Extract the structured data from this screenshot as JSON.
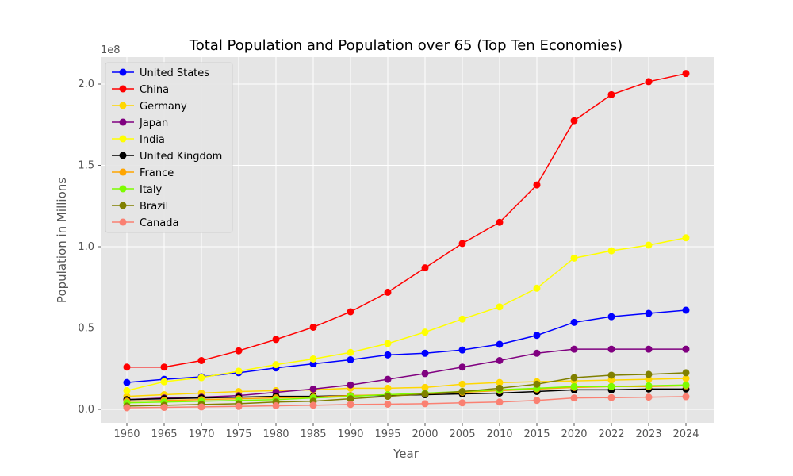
{
  "chart_data": {
    "type": "line",
    "title": "Total Population and Population over 65 (Top Ten Economies)",
    "xlabel": "Year",
    "ylabel": "Population in Millions",
    "y_offset_label": "1e8",
    "categories": [
      "1960",
      "1965",
      "1970",
      "1975",
      "1980",
      "1985",
      "1990",
      "1995",
      "2000",
      "2005",
      "2010",
      "2015",
      "2020",
      "2022",
      "2023",
      "2024"
    ],
    "y_ticks": [
      0.0,
      0.5,
      1.0,
      1.5,
      2.0
    ],
    "y_tick_labels": [
      "0.0",
      "0.5",
      "1.0",
      "1.5",
      "2.0"
    ],
    "ylim": [
      -0.08,
      2.16
    ],
    "y_units": "1e8",
    "grid": true,
    "legend_position": "upper-left",
    "series": [
      {
        "name": "United States",
        "color": "#0000ff",
        "values": [
          0.165,
          0.185,
          0.2,
          0.225,
          0.255,
          0.28,
          0.305,
          0.335,
          0.345,
          0.365,
          0.4,
          0.455,
          0.535,
          0.57,
          0.59,
          0.61
        ]
      },
      {
        "name": "China",
        "color": "#ff0000",
        "values": [
          0.26,
          0.26,
          0.3,
          0.36,
          0.43,
          0.505,
          0.6,
          0.72,
          0.87,
          1.02,
          1.15,
          1.38,
          1.775,
          1.935,
          2.015,
          2.065
        ]
      },
      {
        "name": "Germany",
        "color": "#ffd700",
        "values": [
          0.08,
          0.09,
          0.1,
          0.11,
          0.115,
          0.12,
          0.13,
          0.13,
          0.135,
          0.155,
          0.165,
          0.17,
          0.175,
          0.18,
          0.185,
          0.19
        ]
      },
      {
        "name": "Japan",
        "color": "#800080",
        "values": [
          0.06,
          0.07,
          0.075,
          0.085,
          0.105,
          0.125,
          0.15,
          0.185,
          0.22,
          0.26,
          0.3,
          0.345,
          0.37,
          0.37,
          0.37,
          0.37
        ]
      },
      {
        "name": "India",
        "color": "#ffff00",
        "values": [
          0.115,
          0.17,
          0.195,
          0.235,
          0.275,
          0.31,
          0.35,
          0.405,
          0.475,
          0.555,
          0.63,
          0.745,
          0.93,
          0.975,
          1.01,
          1.055
        ]
      },
      {
        "name": "United Kingdom",
        "color": "#000000",
        "values": [
          0.06,
          0.065,
          0.07,
          0.075,
          0.08,
          0.08,
          0.085,
          0.085,
          0.09,
          0.095,
          0.1,
          0.11,
          0.12,
          0.12,
          0.125,
          0.125
        ]
      },
      {
        "name": "France",
        "color": "#ffa500",
        "values": [
          0.05,
          0.055,
          0.06,
          0.065,
          0.07,
          0.075,
          0.085,
          0.09,
          0.095,
          0.105,
          0.115,
          0.125,
          0.135,
          0.14,
          0.14,
          0.145
        ]
      },
      {
        "name": "Italy",
        "color": "#7cfc00",
        "values": [
          0.04,
          0.045,
          0.05,
          0.055,
          0.06,
          0.07,
          0.08,
          0.09,
          0.1,
          0.11,
          0.12,
          0.13,
          0.14,
          0.14,
          0.145,
          0.15
        ]
      },
      {
        "name": "Brazil",
        "color": "#808000",
        "values": [
          0.02,
          0.025,
          0.03,
          0.035,
          0.045,
          0.05,
          0.065,
          0.08,
          0.095,
          0.11,
          0.13,
          0.155,
          0.195,
          0.21,
          0.215,
          0.225
        ]
      },
      {
        "name": "Canada",
        "color": "#fa8072",
        "values": [
          0.01,
          0.012,
          0.015,
          0.018,
          0.022,
          0.025,
          0.03,
          0.032,
          0.035,
          0.04,
          0.045,
          0.055,
          0.07,
          0.072,
          0.075,
          0.078
        ]
      }
    ]
  }
}
